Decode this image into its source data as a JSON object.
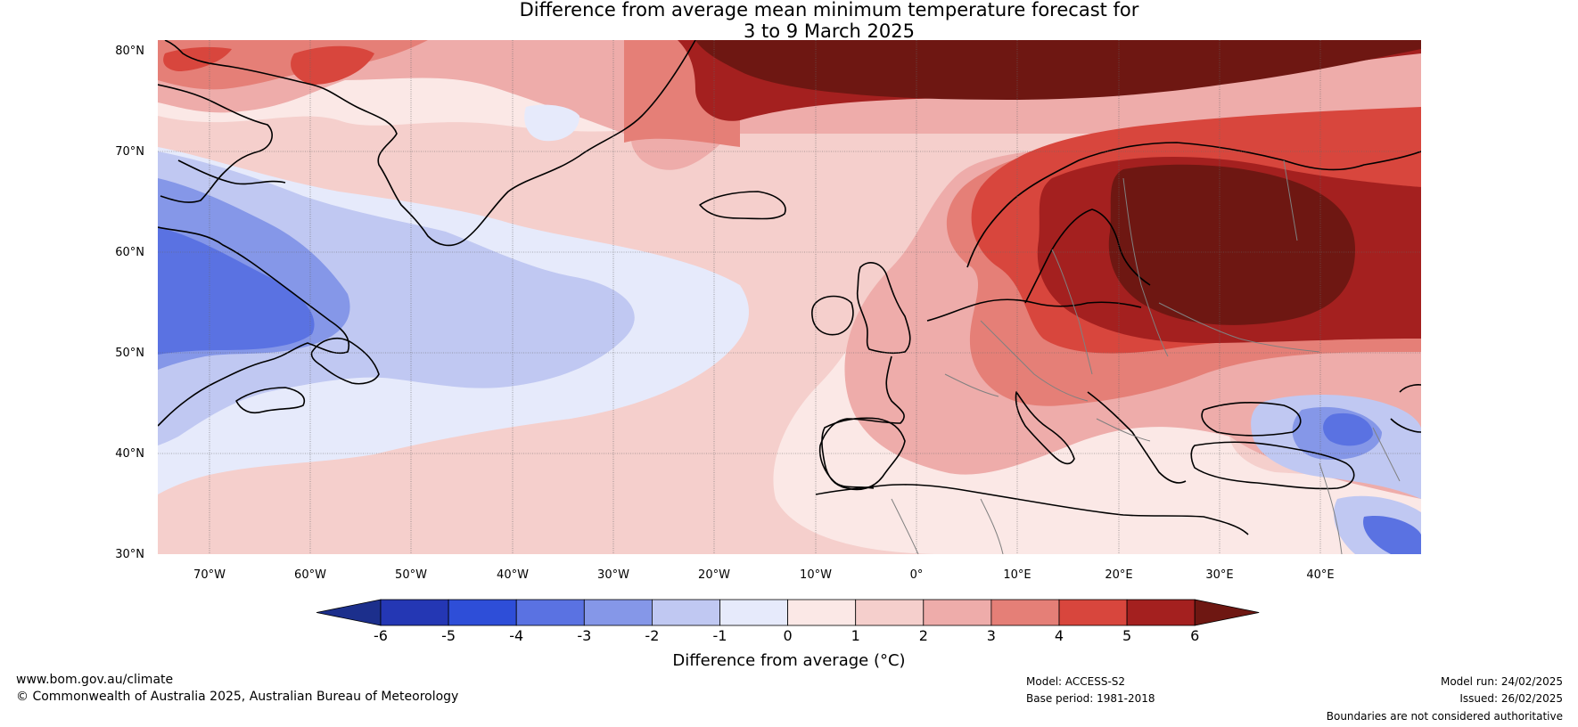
{
  "title": {
    "line1": "Difference from average mean minimum temperature forecast for",
    "line2": "3 to 9 March 2025"
  },
  "axes": {
    "lat_labels": [
      "80°N",
      "70°N",
      "60°N",
      "50°N",
      "40°N",
      "30°N"
    ],
    "lon_labels": [
      "70°W",
      "60°W",
      "50°W",
      "40°W",
      "30°W",
      "20°W",
      "10°W",
      "0°",
      "10°E",
      "20°E",
      "30°E",
      "40°E"
    ]
  },
  "colorbar": {
    "label": "Difference from average (°C)",
    "ticks": [
      "-6",
      "-5",
      "-4",
      "-3",
      "-2",
      "-1",
      "0",
      "1",
      "2",
      "3",
      "4",
      "5",
      "6"
    ],
    "colors": [
      "#1c2f8c",
      "#2437b4",
      "#2e4ed8",
      "#5a72e2",
      "#8597e8",
      "#c0c8f2",
      "#e6eafb",
      "#fbe8e6",
      "#f5cfcc",
      "#eeacaa",
      "#e57f77",
      "#d8463d",
      "#a4201f",
      "#6e1712"
    ]
  },
  "footer": {
    "website": "www.bom.gov.au/climate",
    "copyright": "© Commonwealth of Australia 2025, Australian Bureau of Meteorology",
    "model": "Model: ACCESS-S2",
    "base_period": "Base period: 1981-2018",
    "model_run": "Model run: 24/02/2025",
    "issued": "Issued: 26/02/2025",
    "disclaimer": "Boundaries are not considered authoritative"
  }
}
